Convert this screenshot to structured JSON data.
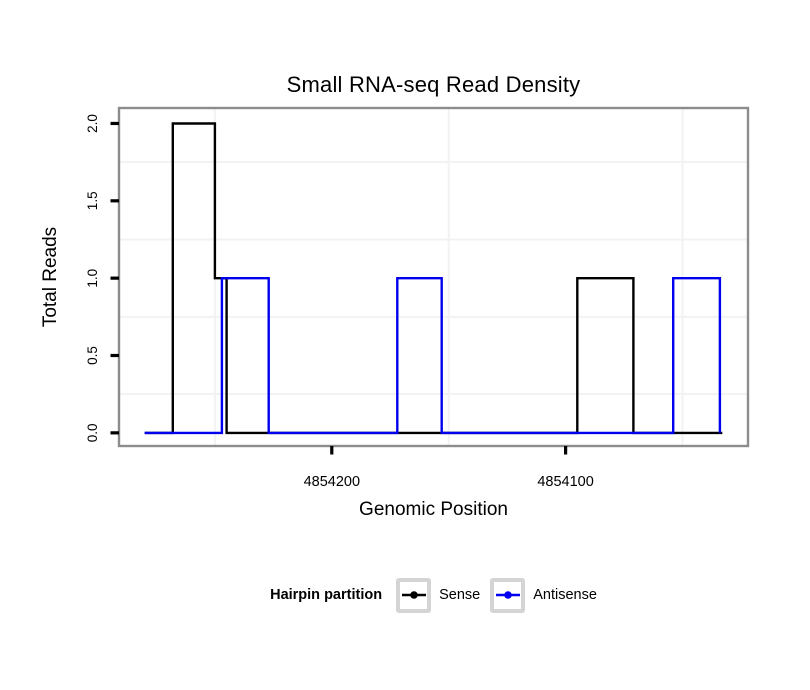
{
  "chart_data": {
    "type": "line",
    "step": true,
    "title": "Small RNA-seq Read Density",
    "xlabel": "Genomic Position",
    "ylabel": "Total Reads",
    "x_reversed": true,
    "xlim": [
      4854291,
      4854022
    ],
    "ylim": [
      -0.085,
      2.1
    ],
    "x_ticks": [
      {
        "pos": 4854200,
        "label": "4854200"
      },
      {
        "pos": 4854100,
        "label": "4854100"
      }
    ],
    "x_minor_gridlines": [
      4854250,
      4854150,
      4854050
    ],
    "y_ticks": [
      {
        "val": 0.0,
        "label": "0.0"
      },
      {
        "val": 0.5,
        "label": "0.5"
      },
      {
        "val": 1.0,
        "label": "1.0"
      },
      {
        "val": 1.5,
        "label": "1.5"
      },
      {
        "val": 2.0,
        "label": "2.0"
      }
    ],
    "y_minor_gridlines": [
      0.25,
      0.75,
      1.25,
      1.75
    ],
    "grid": "minor-only",
    "legend_position": "bottom",
    "series": [
      {
        "name": "Sense",
        "color": "#000000",
        "points": [
          [
            4854280,
            0
          ],
          [
            4854268,
            0
          ],
          [
            4854268,
            2
          ],
          [
            4854250,
            2
          ],
          [
            4854250,
            1
          ],
          [
            4854245,
            1
          ],
          [
            4854245,
            0
          ],
          [
            4854095,
            0
          ],
          [
            4854095,
            1
          ],
          [
            4854071,
            1
          ],
          [
            4854071,
            0
          ],
          [
            4854033,
            0
          ]
        ]
      },
      {
        "name": "Antisense",
        "color": "#0000ee",
        "points": [
          [
            4854280,
            0
          ],
          [
            4854247,
            0
          ],
          [
            4854247,
            1
          ],
          [
            4854227,
            1
          ],
          [
            4854227,
            0
          ],
          [
            4854172,
            0
          ],
          [
            4854172,
            1
          ],
          [
            4854153,
            1
          ],
          [
            4854153,
            0
          ],
          [
            4854054,
            0
          ],
          [
            4854054,
            1
          ],
          [
            4854034,
            1
          ],
          [
            4854034,
            0
          ]
        ]
      }
    ],
    "legend": {
      "title": "Hairpin partition"
    },
    "colors": {
      "panel_border": "#8c8c8c",
      "minor_gridline": "#f2f2f2",
      "tick": "#000000",
      "background": "#ffffff",
      "legend_key_border": "#d4d4d4"
    }
  }
}
